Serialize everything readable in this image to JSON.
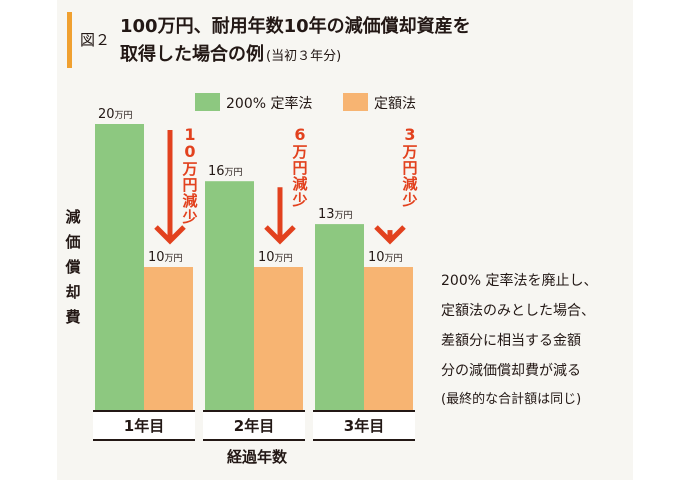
{
  "figure": {
    "label": "図２",
    "title_line1": "100万円、耐用年数10年の減価償却資産を",
    "title_line2": "取得した場合の例",
    "title_note": "(当初３年分)"
  },
  "chart_data": {
    "type": "bar",
    "categories": [
      "1年目",
      "2年目",
      "3年目"
    ],
    "series": [
      {
        "name": "200% 定率法",
        "values": [
          20,
          16,
          13
        ],
        "color": "#8dc880"
      },
      {
        "name": "定額法",
        "values": [
          10,
          10,
          10
        ],
        "color": "#f7b472"
      }
    ],
    "value_labels": {
      "series0": [
        "20万円",
        "16万円",
        "13万円"
      ],
      "series1": [
        "10万円",
        "10万円",
        "10万円"
      ]
    },
    "differences": [
      "10万円減少",
      "6万円減少",
      "3万円減少"
    ],
    "ylabel": "減価償却費",
    "xlabel": "経過年数",
    "ylim": [
      0,
      20
    ],
    "legend_position": "top",
    "arrow_color": "#e2411e"
  },
  "note": {
    "lines": [
      "200% 定率法を廃止し、",
      "定額法のみとした場合、",
      "差額分に相当する金額",
      "分の減価償却費が減る"
    ],
    "sub": "(最終的な合計額は同じ)"
  }
}
